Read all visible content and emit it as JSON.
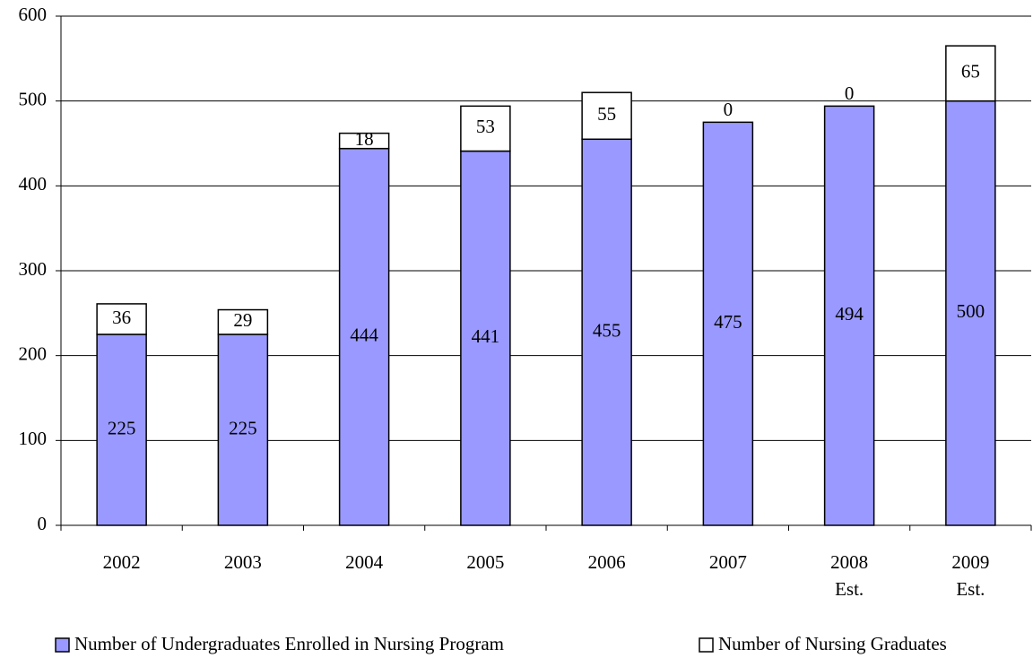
{
  "chart_data": {
    "type": "stacked-bar",
    "categories": [
      "2002",
      "2003",
      "2004",
      "2005",
      "2006",
      "2007",
      "2008 Est.",
      "2009 Est."
    ],
    "series": [
      {
        "name": "Number of Undergraduates Enrolled in Nursing Program",
        "color": "#9999ff",
        "values": [
          225,
          225,
          444,
          441,
          455,
          475,
          494,
          500
        ]
      },
      {
        "name": "Number of Nursing Graduates",
        "color": "#ffffff",
        "values": [
          36,
          29,
          18,
          53,
          55,
          0,
          0,
          65
        ]
      }
    ],
    "ylim": [
      0,
      600
    ],
    "yticks": [
      0,
      100,
      200,
      300,
      400,
      500,
      600
    ],
    "grid": true,
    "legend": "bottom"
  }
}
